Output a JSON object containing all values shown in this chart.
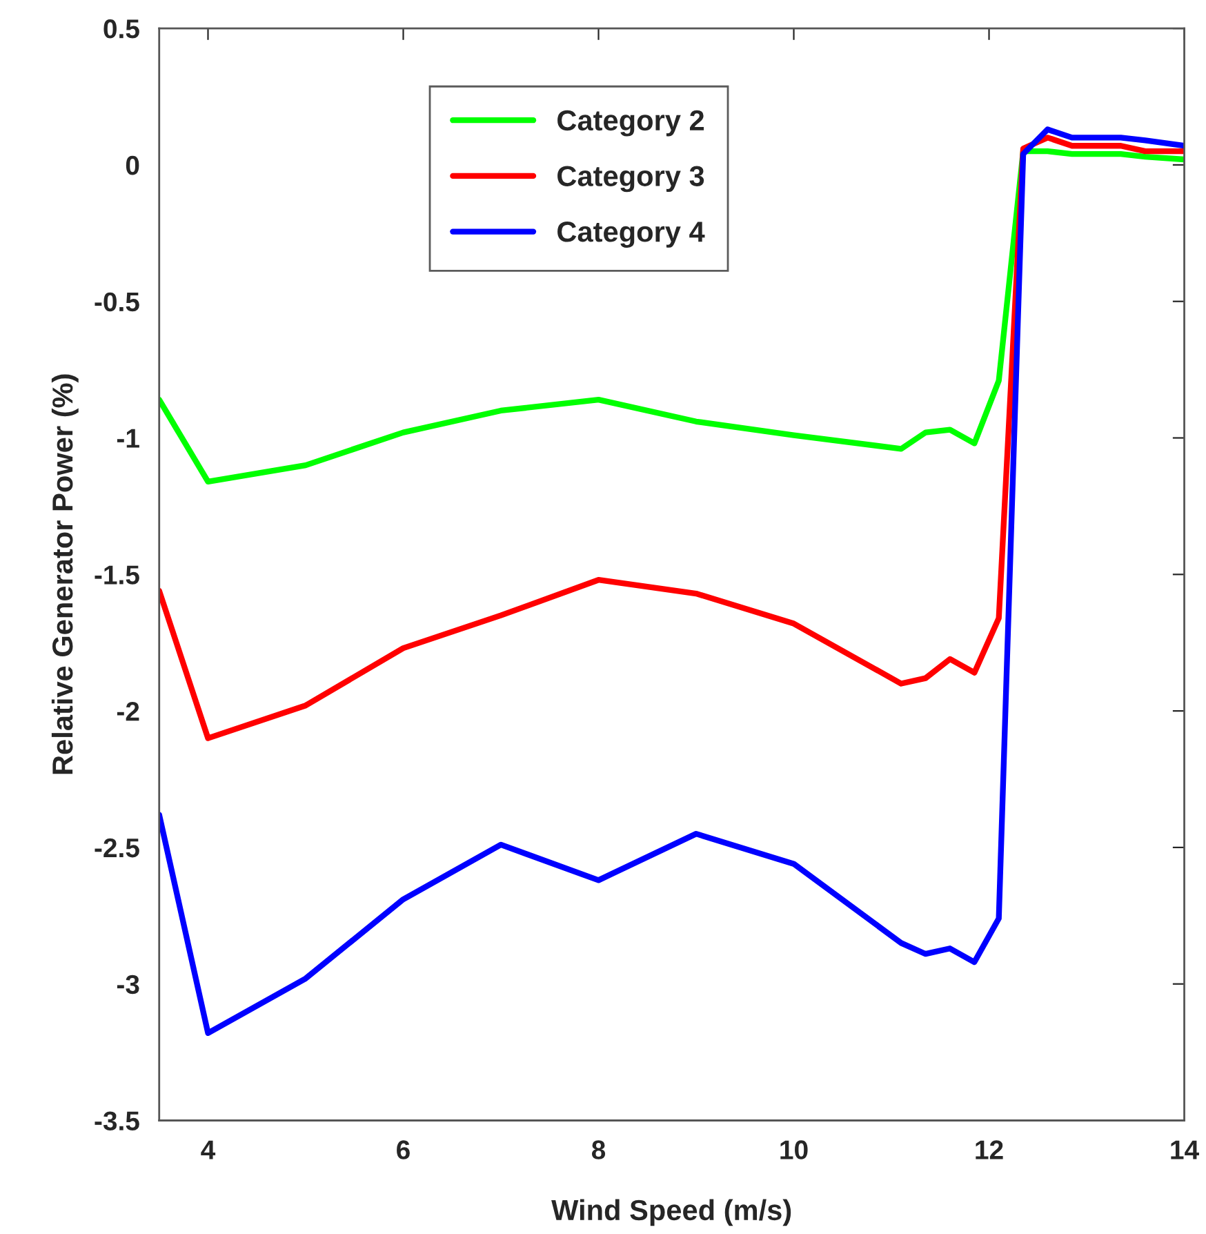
{
  "chart_data": {
    "type": "line",
    "xlabel": "Wind Speed (m/s)",
    "ylabel": "Relative Generator Power (%)",
    "x": [
      3.5,
      4,
      5,
      6,
      7,
      8,
      9,
      10,
      11.1,
      11.35,
      11.6,
      11.85,
      12.1,
      12.35,
      12.6,
      12.85,
      13.1,
      13.35,
      13.6,
      14
    ],
    "series": [
      {
        "name": "Category 2",
        "color": "#00ff00",
        "values": [
          -0.86,
          -1.16,
          -1.1,
          -0.98,
          -0.9,
          -0.86,
          -0.94,
          -0.99,
          -1.04,
          -0.98,
          -0.97,
          -1.02,
          -0.79,
          0.05,
          0.05,
          0.04,
          0.04,
          0.04,
          0.03,
          0.02
        ]
      },
      {
        "name": "Category 3",
        "color": "#ff0000",
        "values": [
          -1.56,
          -2.1,
          -1.98,
          -1.77,
          -1.65,
          -1.52,
          -1.57,
          -1.68,
          -1.9,
          -1.88,
          -1.81,
          -1.86,
          -1.66,
          0.06,
          0.1,
          0.07,
          0.07,
          0.07,
          0.05,
          0.05
        ]
      },
      {
        "name": "Category 4",
        "color": "#0000ff",
        "values": [
          -2.38,
          -3.18,
          -2.98,
          -2.69,
          -2.49,
          -2.62,
          -2.45,
          -2.56,
          -2.85,
          -2.89,
          -2.87,
          -2.92,
          -2.76,
          0.04,
          0.13,
          0.1,
          0.1,
          0.1,
          0.09,
          0.07
        ]
      }
    ],
    "xlim": [
      3.5,
      14
    ],
    "xticks": [
      4,
      6,
      8,
      10,
      12,
      14
    ],
    "ylim": [
      -3.5,
      0.5
    ],
    "yticks": [
      {
        "value": -3.5,
        "label": "-3.5"
      },
      {
        "value": -3,
        "label": "-3"
      },
      {
        "value": -2.5,
        "label": "-2.5"
      },
      {
        "value": -2,
        "label": "-2"
      },
      {
        "value": -1.5,
        "label": "-1.5"
      },
      {
        "value": -1,
        "label": "-1"
      },
      {
        "value": -0.5,
        "label": "-0.5"
      },
      0,
      0.5
    ],
    "grid": false,
    "legend": "top left",
    "marker": "none",
    "line_style": "solid"
  }
}
